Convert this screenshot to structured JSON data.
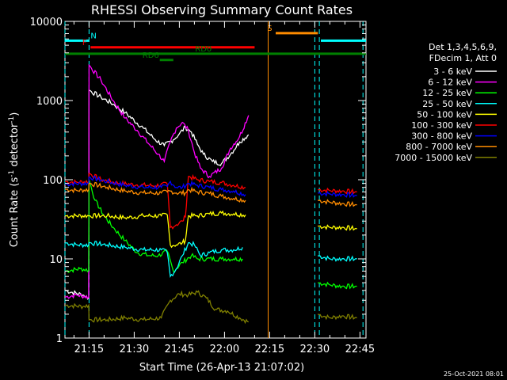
{
  "chart_data": {
    "type": "line",
    "title": "RHESSI Observing Summary Count Rates",
    "xlabel": "Start Time (26-Apr-13 21:07:02)",
    "ylabel": "Count Rate (s⁻¹ detector⁻¹)",
    "ylabel_main": "Count Rate (s",
    "ylabel_sup1": "-1",
    "ylabel_mid": " detector",
    "ylabel_sup2": "-1",
    "ylabel_end": ")",
    "yscale": "log",
    "ylim": [
      1,
      10000
    ],
    "xlim_minutes": [
      0,
      100
    ],
    "x_ticks": [
      {
        "min": 8,
        "label": "21:15"
      },
      {
        "min": 23,
        "label": "21:30"
      },
      {
        "min": 38,
        "label": "21:45"
      },
      {
        "min": 53,
        "label": "22:00"
      },
      {
        "min": 68,
        "label": "22:15"
      },
      {
        "min": 83,
        "label": "22:30"
      },
      {
        "min": 98,
        "label": "22:45"
      }
    ],
    "y_ticks": [
      {
        "value": 1,
        "label": "1"
      },
      {
        "value": 10,
        "label": "10"
      },
      {
        "value": 100,
        "label": "100"
      },
      {
        "value": 1000,
        "label": "1000"
      },
      {
        "value": 10000,
        "label": "10000"
      }
    ],
    "legend_header": [
      "Det 1,3,4,5,6,9,",
      "FDecim 1, Att 0"
    ],
    "series": [
      {
        "name": "3 - 6 keV",
        "color": "#ffffff",
        "points": [
          [
            0,
            4
          ],
          [
            6,
            3.5
          ],
          [
            7.9,
            3.2
          ],
          [
            8,
            1350
          ],
          [
            12,
            1100
          ],
          [
            16,
            900
          ],
          [
            20,
            700
          ],
          [
            26,
            450
          ],
          [
            30,
            320
          ],
          [
            33,
            270
          ],
          [
            36,
            320
          ],
          [
            38,
            380
          ],
          [
            40,
            460
          ],
          [
            42,
            400
          ],
          [
            44,
            280
          ],
          [
            46,
            210
          ],
          [
            49,
            170
          ],
          [
            52,
            160
          ],
          [
            55,
            210
          ],
          [
            58,
            300
          ],
          [
            61,
            370
          ]
        ]
      },
      {
        "name": "6 - 12 keV",
        "color": "#ff00ff",
        "points": [
          [
            0,
            3.3
          ],
          [
            4,
            3.5
          ],
          [
            7.9,
            3.3
          ],
          [
            8,
            2800
          ],
          [
            12,
            1800
          ],
          [
            16,
            1000
          ],
          [
            20,
            600
          ],
          [
            24,
            420
          ],
          [
            28,
            280
          ],
          [
            31,
            210
          ],
          [
            33,
            170
          ],
          [
            35,
            300
          ],
          [
            37,
            450
          ],
          [
            39,
            530
          ],
          [
            41,
            420
          ],
          [
            43,
            220
          ],
          [
            45,
            140
          ],
          [
            48,
            110
          ],
          [
            52,
            140
          ],
          [
            55,
            250
          ],
          [
            58,
            350
          ],
          [
            61,
            650
          ]
        ]
      },
      {
        "name": "12 - 25 keV",
        "color": "#00ff00",
        "points": [
          [
            0,
            7
          ],
          [
            5,
            7.5
          ],
          [
            7.9,
            7.2
          ],
          [
            8,
            100
          ],
          [
            10,
            55
          ],
          [
            13,
            35
          ],
          [
            16,
            25
          ],
          [
            20,
            17
          ],
          [
            24,
            12
          ],
          [
            28,
            11
          ],
          [
            31,
            11
          ],
          [
            34,
            12.5
          ],
          [
            36,
            7
          ],
          [
            39,
            9
          ],
          [
            42,
            11
          ],
          [
            44,
            10
          ],
          [
            47,
            10
          ],
          [
            52,
            10
          ],
          [
            56,
            10
          ],
          [
            59,
            10
          ]
        ]
      },
      {
        "name": "25 - 50 keV",
        "color": "#00ffff",
        "points": [
          [
            0,
            16
          ],
          [
            4,
            15
          ],
          [
            7.9,
            15
          ],
          [
            8,
            16
          ],
          [
            14,
            15
          ],
          [
            20,
            14
          ],
          [
            26,
            13
          ],
          [
            32,
            13
          ],
          [
            34,
            12
          ],
          [
            35,
            6
          ],
          [
            37,
            7.5
          ],
          [
            39,
            11
          ],
          [
            41,
            16
          ],
          [
            43,
            15
          ],
          [
            45,
            11
          ],
          [
            48,
            12
          ],
          [
            52,
            13
          ],
          [
            56,
            13
          ],
          [
            59,
            14
          ]
        ]
      },
      {
        "name": "50 - 100 keV",
        "color": "#ffff00",
        "points": [
          [
            0,
            35
          ],
          [
            7.9,
            35
          ],
          [
            8,
            35
          ],
          [
            14,
            35
          ],
          [
            20,
            33
          ],
          [
            26,
            35
          ],
          [
            32,
            35
          ],
          [
            34,
            36
          ],
          [
            35,
            15
          ],
          [
            37,
            15
          ],
          [
            39,
            16
          ],
          [
            40,
            17
          ],
          [
            41,
            35
          ],
          [
            44,
            35
          ],
          [
            48,
            37
          ],
          [
            52,
            38
          ],
          [
            56,
            37
          ],
          [
            60,
            36
          ]
        ]
      },
      {
        "name": "100 - 300 keV",
        "color": "#ff0000",
        "points": [
          [
            0,
            95
          ],
          [
            4,
            93
          ],
          [
            7.9,
            95
          ],
          [
            8,
            120
          ],
          [
            12,
            100
          ],
          [
            18,
            90
          ],
          [
            24,
            86
          ],
          [
            30,
            84
          ],
          [
            34,
            88
          ],
          [
            35,
            25
          ],
          [
            37,
            27
          ],
          [
            39,
            30
          ],
          [
            40,
            34
          ],
          [
            41,
            110
          ],
          [
            44,
            100
          ],
          [
            48,
            95
          ],
          [
            52,
            92
          ],
          [
            56,
            85
          ],
          [
            60,
            80
          ]
        ]
      },
      {
        "name": "300 - 800 keV",
        "color": "#0000ff",
        "points": [
          [
            0,
            88
          ],
          [
            7.9,
            90
          ],
          [
            8,
            108
          ],
          [
            14,
            95
          ],
          [
            20,
            85
          ],
          [
            26,
            80
          ],
          [
            32,
            80
          ],
          [
            34,
            82
          ],
          [
            35,
            95
          ],
          [
            37,
            80
          ],
          [
            39,
            80
          ],
          [
            41,
            90
          ],
          [
            44,
            85
          ],
          [
            48,
            80
          ],
          [
            52,
            75
          ],
          [
            56,
            72
          ],
          [
            60,
            65
          ]
        ]
      },
      {
        "name": "800 - 7000 keV",
        "color": "#ff8c00",
        "points": [
          [
            0,
            76
          ],
          [
            4,
            73
          ],
          [
            7.9,
            75
          ],
          [
            8,
            90
          ],
          [
            14,
            80
          ],
          [
            20,
            72
          ],
          [
            26,
            68
          ],
          [
            32,
            68
          ],
          [
            34,
            70
          ],
          [
            35,
            72
          ],
          [
            37,
            68
          ],
          [
            40,
            68
          ],
          [
            41,
            75
          ],
          [
            44,
            70
          ],
          [
            48,
            67
          ],
          [
            52,
            62
          ],
          [
            56,
            58
          ],
          [
            60,
            55
          ]
        ]
      },
      {
        "name": "7000 - 15000 keV",
        "color": "#808000",
        "points": [
          [
            0,
            2.6
          ],
          [
            6,
            2.5
          ],
          [
            7.9,
            2.6
          ],
          [
            8,
            1.7
          ],
          [
            14,
            1.7
          ],
          [
            20,
            1.8
          ],
          [
            26,
            1.7
          ],
          [
            32,
            1.8
          ],
          [
            35,
            3
          ],
          [
            38,
            3.6
          ],
          [
            41,
            3.5
          ],
          [
            44,
            3.8
          ],
          [
            47,
            3.2
          ],
          [
            50,
            2.3
          ],
          [
            54,
            2.2
          ],
          [
            58,
            1.8
          ],
          [
            61,
            1.6
          ]
        ]
      }
    ],
    "series_after_gap": [
      {
        "color": "#ff0000",
        "points": [
          [
            84,
            75
          ],
          [
            88,
            73
          ],
          [
            92,
            72
          ],
          [
            97,
            70
          ]
        ]
      },
      {
        "color": "#0000ff",
        "points": [
          [
            84,
            68
          ],
          [
            88,
            66
          ],
          [
            92,
            65
          ],
          [
            97,
            63
          ]
        ]
      },
      {
        "color": "#ff8c00",
        "points": [
          [
            84,
            55
          ],
          [
            88,
            52
          ],
          [
            92,
            50
          ],
          [
            97,
            48
          ]
        ]
      },
      {
        "color": "#ffff00",
        "points": [
          [
            84,
            26
          ],
          [
            88,
            25
          ],
          [
            92,
            25
          ],
          [
            97,
            24
          ]
        ]
      },
      {
        "color": "#00ffff",
        "points": [
          [
            84,
            11
          ],
          [
            88,
            10
          ],
          [
            92,
            10
          ],
          [
            97,
            10
          ]
        ]
      },
      {
        "color": "#00ff00",
        "points": [
          [
            84,
            5
          ],
          [
            88,
            4.7
          ],
          [
            92,
            4.5
          ],
          [
            97,
            4.5
          ]
        ]
      },
      {
        "color": "#808000",
        "points": [
          [
            84,
            2
          ],
          [
            88,
            1.8
          ],
          [
            92,
            1.9
          ],
          [
            97,
            1.8
          ]
        ]
      }
    ],
    "annotations": {
      "bars": [
        {
          "label": "N",
          "color": "#00ffff",
          "from": 0,
          "to": 8,
          "level": 5700,
          "label_at": 9.5
        },
        {
          "label": "N",
          "color": "#00ffff",
          "from": 85,
          "to": 100,
          "level": 5700,
          "label_at": null
        },
        {
          "label": "F",
          "color": "#ff0000",
          "from": 8.5,
          "to": 63,
          "level": 4700,
          "label_at": 6.5
        },
        {
          "label": "S",
          "color": "#ff8c00",
          "from": 70,
          "to": 84,
          "level": 7100,
          "label_at": 68
        },
        {
          "label": "RD0",
          "color": "#008000",
          "from": 0,
          "to": 100,
          "level": 3900,
          "label_at": 46
        },
        {
          "label": "RD6",
          "color": "#008000",
          "from": 31.5,
          "to": 36,
          "level": 3250,
          "label_at": 28.5
        }
      ],
      "vlines": [
        {
          "color": "#00ffff",
          "min": 0,
          "dashed": true
        },
        {
          "color": "#00ffff",
          "min": 8,
          "dashed": true
        },
        {
          "color": "#ff8c00",
          "min": 67.5,
          "dashed": false
        },
        {
          "color": "#00ffff",
          "min": 83,
          "dashed": true
        },
        {
          "color": "#00ffff",
          "min": 84.5,
          "dashed": true
        },
        {
          "color": "#00ffff",
          "min": 99,
          "dashed": true
        }
      ]
    },
    "timestamp": "25-Oct-2021 08:01"
  }
}
